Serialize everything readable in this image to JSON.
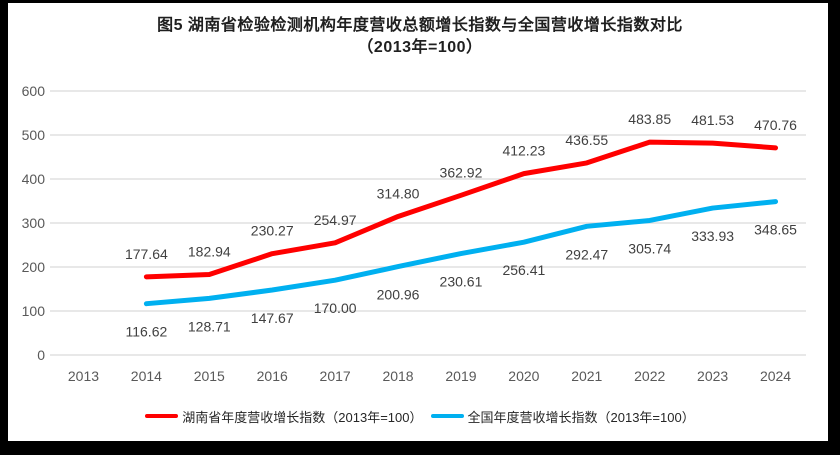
{
  "title": {
    "line1": "图5 湖南省检验检测机构年度营收总额增长指数与全国营收增长指数对比",
    "line2": "（2013年=100）"
  },
  "chart_data": {
    "type": "line",
    "title": "图5 湖南省检验检测机构年度营收总额增长指数与全国营收增长指数对比（2013年=100）",
    "categories": [
      "2013",
      "2014",
      "2015",
      "2016",
      "2017",
      "2018",
      "2019",
      "2020",
      "2021",
      "2022",
      "2023",
      "2024"
    ],
    "series": [
      {
        "name": "湖南省年度营收增长指数（2013年=100）",
        "color": "#FF0000",
        "label_position": "above",
        "values": [
          null,
          177.64,
          182.94,
          230.27,
          254.97,
          314.8,
          362.92,
          412.23,
          436.55,
          483.85,
          481.53,
          470.76
        ]
      },
      {
        "name": "全国年度营收增长指数（2013年=100）",
        "color": "#00B0F0",
        "label_position": "below",
        "values": [
          null,
          116.62,
          128.71,
          147.67,
          170.0,
          200.96,
          230.61,
          256.41,
          292.47,
          305.74,
          333.93,
          348.65
        ]
      }
    ],
    "xlabel": "",
    "ylabel": "",
    "ylim": [
      0,
      600
    ],
    "y_ticks": [
      0,
      100,
      200,
      300,
      400,
      500,
      600
    ],
    "grid": true,
    "legend_position": "bottom",
    "data_labels_decimals": 2
  },
  "colors": {
    "series_hunan": "#FF0000",
    "series_national": "#00B0F0",
    "gridline": "#D9D9D9",
    "axis_text": "#595959",
    "data_label_text": "#404040",
    "title_text": "#1f1f1f",
    "frame": "#000000"
  }
}
